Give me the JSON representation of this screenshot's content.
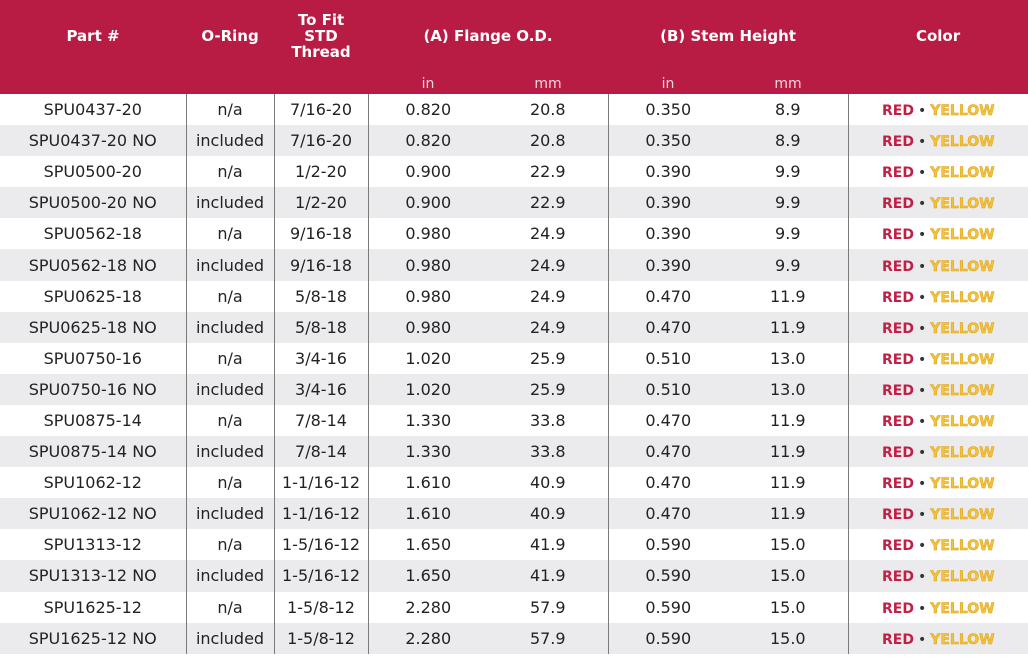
{
  "headers": {
    "part": "Part #",
    "oring": "O-Ring",
    "thread_1": "To Fit",
    "thread_2": "STD",
    "thread_3": "Thread",
    "flange": "(A) Flange O.D.",
    "stem": "(B) Stem Height",
    "color": "Color",
    "in": "in",
    "mm": "mm"
  },
  "colors": {
    "red_label": "RED",
    "separator": "•",
    "yellow_label": "YELLOW",
    "header_bg": "#b81c44",
    "red": "#c21f45",
    "yellow": "#f3c23a"
  },
  "rows": [
    {
      "part": "SPU0437-20",
      "oring": "n/a",
      "thread": "7/16-20",
      "flange_in": "0.820",
      "flange_mm": "20.8",
      "stem_in": "0.350",
      "stem_mm": "8.9"
    },
    {
      "part": "SPU0437-20 NO",
      "oring": "included",
      "thread": "7/16-20",
      "flange_in": "0.820",
      "flange_mm": "20.8",
      "stem_in": "0.350",
      "stem_mm": "8.9"
    },
    {
      "part": "SPU0500-20",
      "oring": "n/a",
      "thread": "1/2-20",
      "flange_in": "0.900",
      "flange_mm": "22.9",
      "stem_in": "0.390",
      "stem_mm": "9.9"
    },
    {
      "part": "SPU0500-20 NO",
      "oring": "included",
      "thread": "1/2-20",
      "flange_in": "0.900",
      "flange_mm": "22.9",
      "stem_in": "0.390",
      "stem_mm": "9.9"
    },
    {
      "part": "SPU0562-18",
      "oring": "n/a",
      "thread": "9/16-18",
      "flange_in": "0.980",
      "flange_mm": "24.9",
      "stem_in": "0.390",
      "stem_mm": "9.9"
    },
    {
      "part": "SPU0562-18 NO",
      "oring": "included",
      "thread": "9/16-18",
      "flange_in": "0.980",
      "flange_mm": "24.9",
      "stem_in": "0.390",
      "stem_mm": "9.9"
    },
    {
      "part": "SPU0625-18",
      "oring": "n/a",
      "thread": "5/8-18",
      "flange_in": "0.980",
      "flange_mm": "24.9",
      "stem_in": "0.470",
      "stem_mm": "11.9"
    },
    {
      "part": "SPU0625-18 NO",
      "oring": "included",
      "thread": "5/8-18",
      "flange_in": "0.980",
      "flange_mm": "24.9",
      "stem_in": "0.470",
      "stem_mm": "11.9"
    },
    {
      "part": "SPU0750-16",
      "oring": "n/a",
      "thread": "3/4-16",
      "flange_in": "1.020",
      "flange_mm": "25.9",
      "stem_in": "0.510",
      "stem_mm": "13.0"
    },
    {
      "part": "SPU0750-16 NO",
      "oring": "included",
      "thread": "3/4-16",
      "flange_in": "1.020",
      "flange_mm": "25.9",
      "stem_in": "0.510",
      "stem_mm": "13.0"
    },
    {
      "part": "SPU0875-14",
      "oring": "n/a",
      "thread": "7/8-14",
      "flange_in": "1.330",
      "flange_mm": "33.8",
      "stem_in": "0.470",
      "stem_mm": "11.9"
    },
    {
      "part": "SPU0875-14 NO",
      "oring": "included",
      "thread": "7/8-14",
      "flange_in": "1.330",
      "flange_mm": "33.8",
      "stem_in": "0.470",
      "stem_mm": "11.9"
    },
    {
      "part": "SPU1062-12",
      "oring": "n/a",
      "thread": "1-1/16-12",
      "flange_in": "1.610",
      "flange_mm": "40.9",
      "stem_in": "0.470",
      "stem_mm": "11.9"
    },
    {
      "part": "SPU1062-12 NO",
      "oring": "included",
      "thread": "1-1/16-12",
      "flange_in": "1.610",
      "flange_mm": "40.9",
      "stem_in": "0.470",
      "stem_mm": "11.9"
    },
    {
      "part": "SPU1313-12",
      "oring": "n/a",
      "thread": "1-5/16-12",
      "flange_in": "1.650",
      "flange_mm": "41.9",
      "stem_in": "0.590",
      "stem_mm": "15.0"
    },
    {
      "part": "SPU1313-12 NO",
      "oring": "included",
      "thread": "1-5/16-12",
      "flange_in": "1.650",
      "flange_mm": "41.9",
      "stem_in": "0.590",
      "stem_mm": "15.0"
    },
    {
      "part": "SPU1625-12",
      "oring": "n/a",
      "thread": "1-5/8-12",
      "flange_in": "2.280",
      "flange_mm": "57.9",
      "stem_in": "0.590",
      "stem_mm": "15.0"
    },
    {
      "part": "SPU1625-12 NO",
      "oring": "included",
      "thread": "1-5/8-12",
      "flange_in": "2.280",
      "flange_mm": "57.9",
      "stem_in": "0.590",
      "stem_mm": "15.0"
    }
  ]
}
